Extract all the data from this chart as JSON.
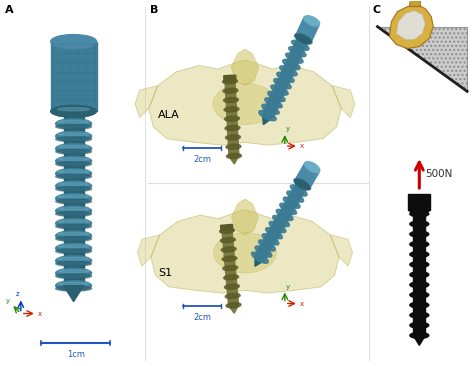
{
  "bg_color": "#ffffff",
  "panel_A_label": "A",
  "panel_B_label": "B",
  "panel_C_label": "C",
  "screw_blue_head": "#4a8aa8",
  "screw_blue_mid": "#3d7d97",
  "screw_blue_dark": "#2a6070",
  "screw_blue_thread": "#5598b0",
  "screw_blue_light": "#6aaec6",
  "bone_fill": "#d4cc7a",
  "bone_edge": "#b0a840",
  "bone_inner": "#c8bc50",
  "bone_alpha": 0.45,
  "screw_olive": "#7a7a42",
  "screw_olive_dark": "#5a5a28",
  "axis_x_color": "#cc2200",
  "axis_y_color": "#228800",
  "axis_z_color": "#0033cc",
  "scale_color": "#2255bb",
  "arrow_red": "#cc0000",
  "screw_black": "#0d0d0d",
  "gray_hatched": "#b8b8b8",
  "bone_yellow": "#c8a030",
  "bone_yellow2": "#d8b040",
  "bone_white": "#e0ddd5",
  "bone_cream": "#ddd8c0",
  "s1_label": "S1",
  "ala_label": "ALA",
  "force_label": "500N",
  "scale_1cm": "1cm",
  "scale_2cm": "2cm"
}
